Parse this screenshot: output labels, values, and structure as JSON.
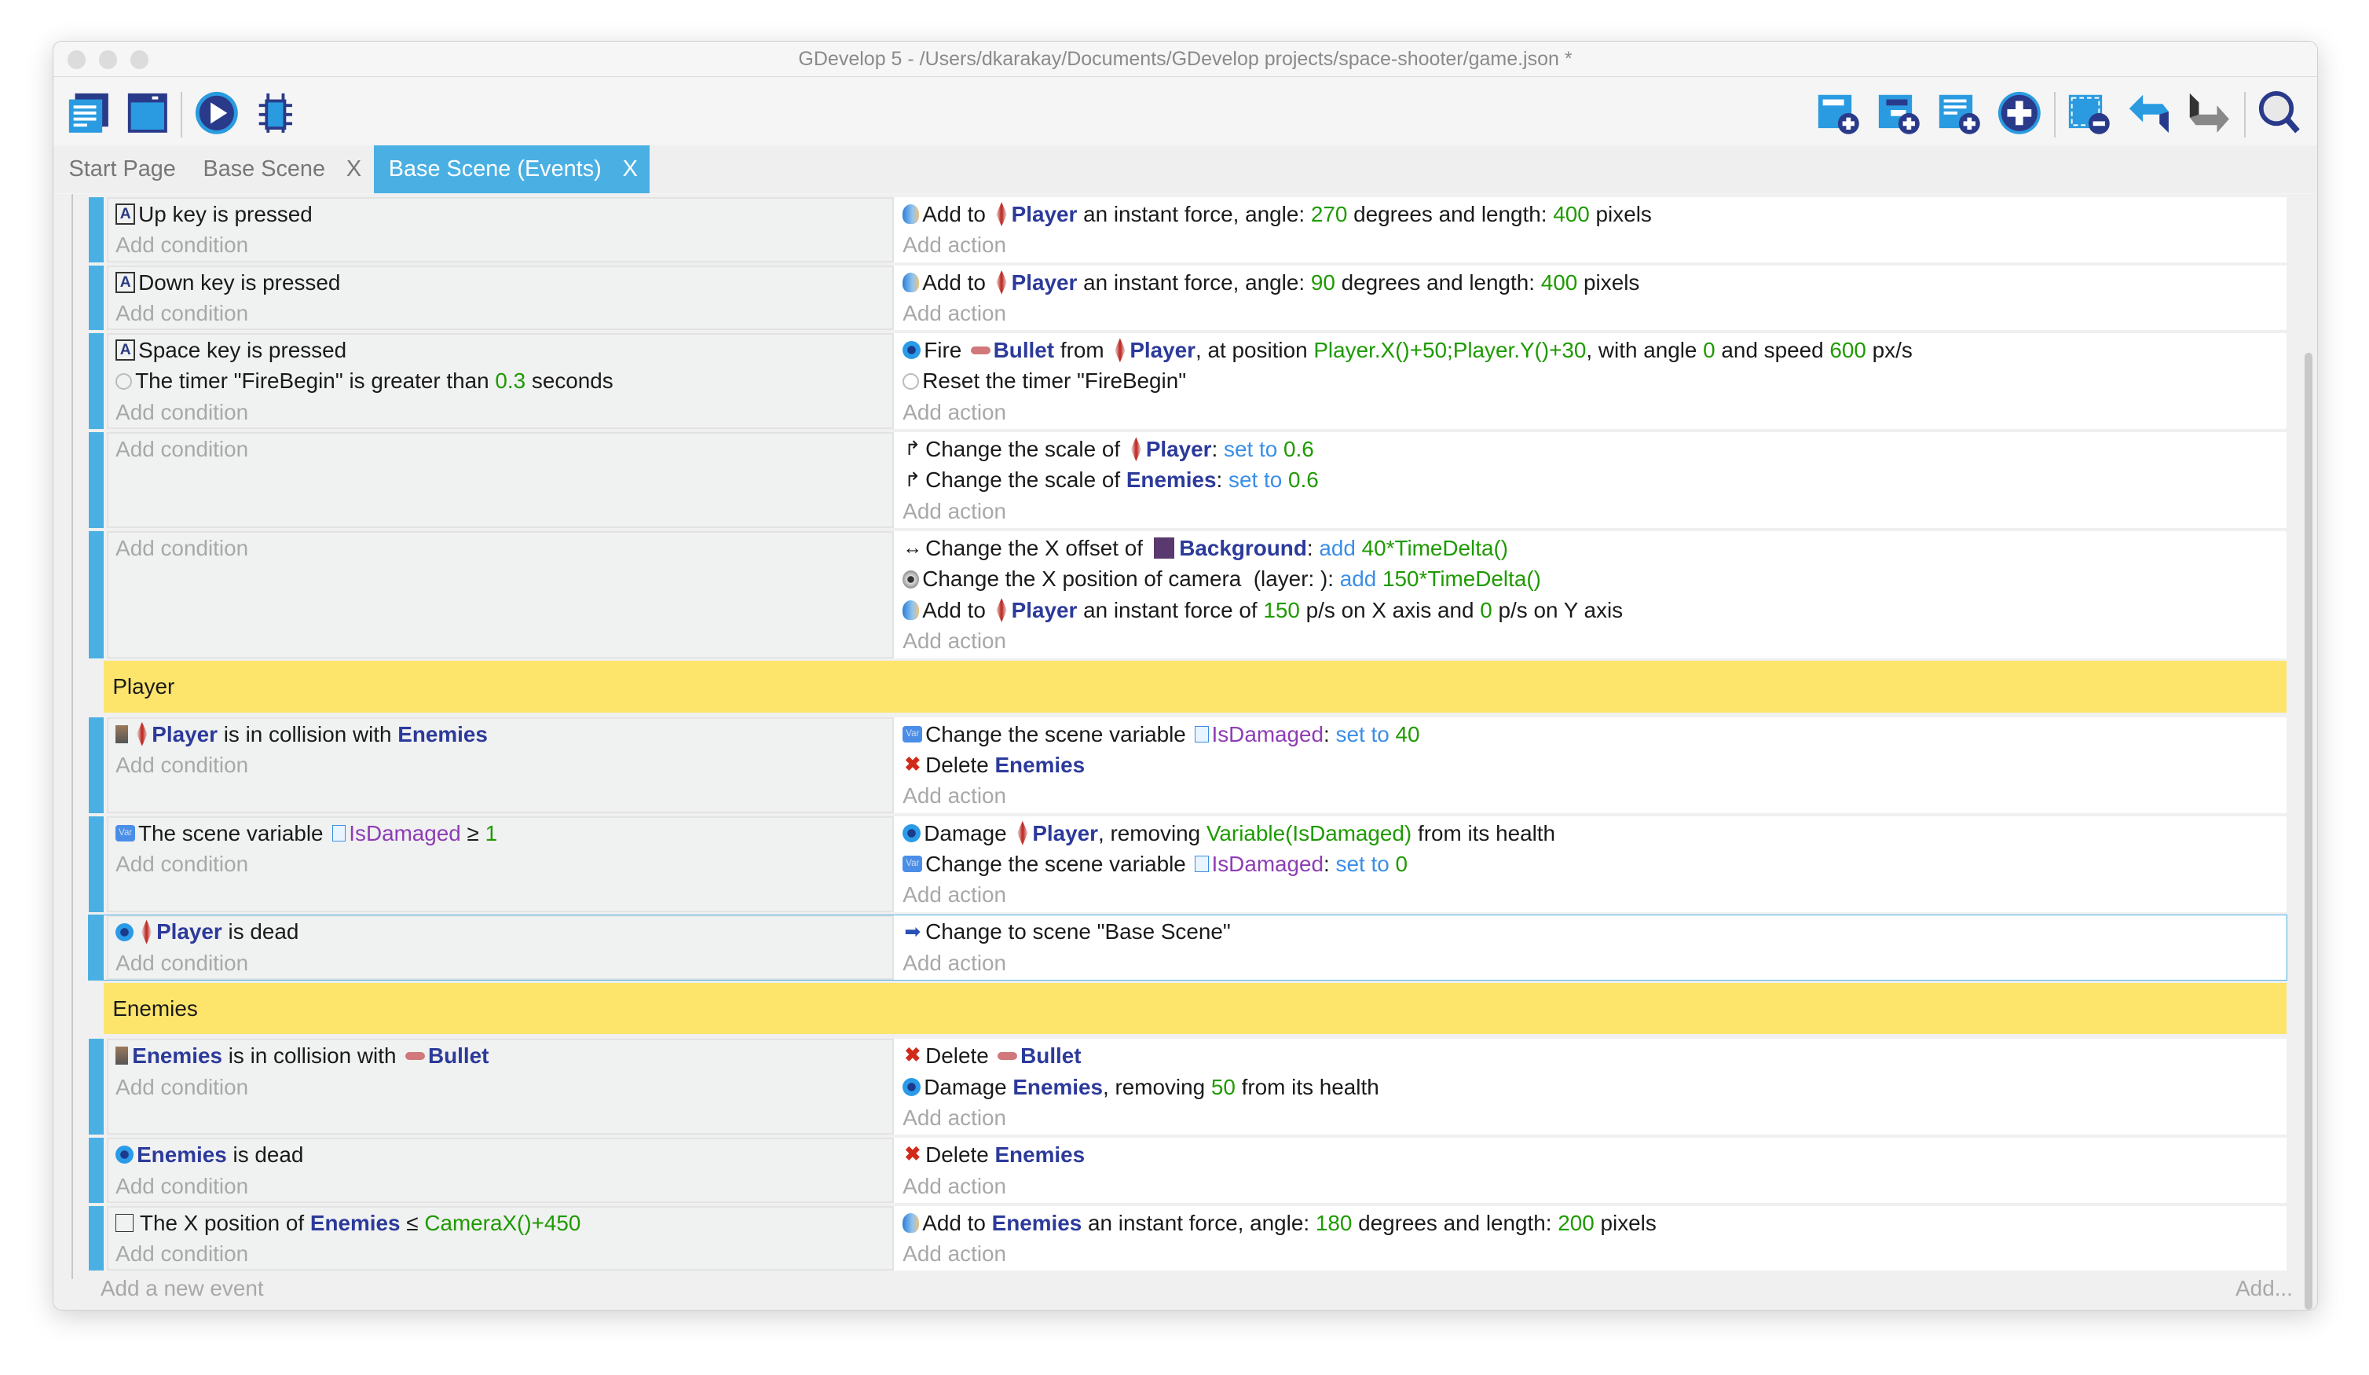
{
  "window": {
    "title": "GDevelop 5 - /Users/dkarakay/Documents/GDevelop projects/space-shooter/game.json *"
  },
  "toolbar": {
    "left": [
      "project-manager-icon",
      "scene-editor-icon",
      "preview-play-icon",
      "debugger-icon"
    ],
    "right": [
      "add-event-icon",
      "add-sub-event-icon",
      "add-comment-icon",
      "add-other-icon",
      "delete-selection-icon",
      "undo-icon",
      "redo-icon",
      "search-icon"
    ]
  },
  "tabs": [
    {
      "label": "Start Page",
      "closable": false
    },
    {
      "label": "Base Scene",
      "closable": true
    },
    {
      "label": "Base Scene (Events)",
      "closable": true,
      "active": true
    }
  ],
  "colors": {
    "accent": "#4ab0e4",
    "group": "#fde56b",
    "object": "#2c3a9a",
    "value": "#1e9a00",
    "operator": "#3a8ee6",
    "variable": "#8e3cb5"
  },
  "labels": {
    "add_condition": "Add condition",
    "add_action": "Add action",
    "add_event": "Add a new event",
    "add_more": "Add...",
    "close": "X"
  },
  "events": [
    {
      "type": "event",
      "conditions": [
        [
          {
            "i": "keyboard"
          },
          {
            "t": "Up key is pressed"
          }
        ]
      ],
      "actions": [
        [
          {
            "i": "force"
          },
          {
            "t": "Add to "
          },
          {
            "i": "player"
          },
          {
            "t": "Player",
            "s": "obj"
          },
          {
            "t": " an instant force, angle: "
          },
          {
            "t": "270",
            "s": "num"
          },
          {
            "t": " degrees and length: "
          },
          {
            "t": "400",
            "s": "num"
          },
          {
            "t": " pixels"
          }
        ]
      ]
    },
    {
      "type": "event",
      "conditions": [
        [
          {
            "i": "keyboard"
          },
          {
            "t": "Down key is pressed"
          }
        ]
      ],
      "actions": [
        [
          {
            "i": "force"
          },
          {
            "t": "Add to "
          },
          {
            "i": "player"
          },
          {
            "t": "Player",
            "s": "obj"
          },
          {
            "t": " an instant force, angle: "
          },
          {
            "t": "90",
            "s": "num"
          },
          {
            "t": " degrees and length: "
          },
          {
            "t": "400",
            "s": "num"
          },
          {
            "t": " pixels"
          }
        ]
      ]
    },
    {
      "type": "event",
      "conditions": [
        [
          {
            "i": "keyboard"
          },
          {
            "t": "Space key is pressed"
          }
        ],
        [
          {
            "i": "timer"
          },
          {
            "t": "The timer \"FireBegin\" is greater than "
          },
          {
            "t": "0.3",
            "s": "num"
          },
          {
            "t": " seconds"
          }
        ]
      ],
      "actions": [
        [
          {
            "i": "gear"
          },
          {
            "t": "Fire "
          },
          {
            "i": "bullet"
          },
          {
            "t": "Bullet",
            "s": "obj"
          },
          {
            "t": " from "
          },
          {
            "i": "player"
          },
          {
            "t": "Player",
            "s": "obj"
          },
          {
            "t": ", at position "
          },
          {
            "t": "Player.X()+50;Player.Y()+30",
            "s": "num"
          },
          {
            "t": ", with angle "
          },
          {
            "t": "0",
            "s": "num"
          },
          {
            "t": " and speed "
          },
          {
            "t": "600",
            "s": "num"
          },
          {
            "t": " px/s"
          }
        ],
        [
          {
            "i": "timer"
          },
          {
            "t": "Reset the timer \"FireBegin\""
          }
        ]
      ]
    },
    {
      "type": "event",
      "conditions": [],
      "actions": [
        [
          {
            "i": "scale"
          },
          {
            "t": "Change the scale of "
          },
          {
            "i": "player"
          },
          {
            "t": "Player",
            "s": "obj"
          },
          {
            "t": ": "
          },
          {
            "t": "set to",
            "s": "op"
          },
          {
            "t": " 0.6",
            "s": "num"
          }
        ],
        [
          {
            "i": "scale"
          },
          {
            "t": "Change the scale of "
          },
          {
            "t": "Enemies",
            "s": "obj"
          },
          {
            "t": ": "
          },
          {
            "t": "set to",
            "s": "op"
          },
          {
            "t": " 0.6",
            "s": "num"
          }
        ]
      ]
    },
    {
      "type": "event",
      "conditions": [],
      "actions": [
        [
          {
            "i": "offset"
          },
          {
            "t": "Change the X offset of "
          },
          {
            "i": "bg"
          },
          {
            "t": "Background",
            "s": "obj"
          },
          {
            "t": ": "
          },
          {
            "t": "add",
            "s": "op"
          },
          {
            "t": " 40*TimeDelta()",
            "s": "num"
          }
        ],
        [
          {
            "i": "camera"
          },
          {
            "t": "Change the X position of camera  (layer: ): "
          },
          {
            "t": "add",
            "s": "op"
          },
          {
            "t": " 150*TimeDelta()",
            "s": "num"
          }
        ],
        [
          {
            "i": "force"
          },
          {
            "t": "Add to "
          },
          {
            "i": "player"
          },
          {
            "t": "Player",
            "s": "obj"
          },
          {
            "t": " an instant force of "
          },
          {
            "t": "150",
            "s": "num"
          },
          {
            "t": " p/s on X axis and "
          },
          {
            "t": "0",
            "s": "num"
          },
          {
            "t": " p/s on Y axis"
          }
        ]
      ]
    },
    {
      "type": "group",
      "title": "Player"
    },
    {
      "type": "event",
      "conditions": [
        [
          {
            "i": "collision"
          },
          {
            "i": "player"
          },
          {
            "t": "Player",
            "s": "obj"
          },
          {
            "t": " is in collision with "
          },
          {
            "t": "Enemies",
            "s": "obj"
          }
        ]
      ],
      "actions": [
        [
          {
            "i": "variable"
          },
          {
            "t": "Change the scene variable "
          },
          {
            "i": "varref"
          },
          {
            "t": "IsDamaged",
            "s": "var"
          },
          {
            "t": ": "
          },
          {
            "t": "set to",
            "s": "op"
          },
          {
            "t": " 40",
            "s": "num"
          }
        ],
        [
          {
            "i": "delete"
          },
          {
            "t": "Delete "
          },
          {
            "t": "Enemies",
            "s": "obj"
          }
        ]
      ]
    },
    {
      "type": "event",
      "conditions": [
        [
          {
            "i": "variable"
          },
          {
            "t": "The scene variable "
          },
          {
            "i": "varref"
          },
          {
            "t": "IsDamaged",
            "s": "var"
          },
          {
            "t": " ≥ "
          },
          {
            "t": "1",
            "s": "num"
          }
        ]
      ],
      "actions": [
        [
          {
            "i": "gear"
          },
          {
            "t": "Damage "
          },
          {
            "i": "player"
          },
          {
            "t": "Player",
            "s": "obj"
          },
          {
            "t": ", removing "
          },
          {
            "t": "Variable(IsDamaged)",
            "s": "num"
          },
          {
            "t": " from its health"
          }
        ],
        [
          {
            "i": "variable"
          },
          {
            "t": "Change the scene variable "
          },
          {
            "i": "varref"
          },
          {
            "t": "IsDamaged",
            "s": "var"
          },
          {
            "t": ": "
          },
          {
            "t": "set to",
            "s": "op"
          },
          {
            "t": " 0",
            "s": "num"
          }
        ]
      ]
    },
    {
      "type": "event",
      "selected": true,
      "conditions": [
        [
          {
            "i": "gear"
          },
          {
            "i": "player"
          },
          {
            "t": "Player",
            "s": "obj"
          },
          {
            "t": " is dead"
          }
        ]
      ],
      "actions": [
        [
          {
            "i": "scene"
          },
          {
            "t": "Change to scene \"Base Scene\""
          }
        ]
      ]
    },
    {
      "type": "group",
      "title": "Enemies"
    },
    {
      "type": "event",
      "conditions": [
        [
          {
            "i": "collision"
          },
          {
            "t": "Enemies",
            "s": "obj"
          },
          {
            "t": " is in collision with "
          },
          {
            "i": "bullet"
          },
          {
            "t": "Bullet",
            "s": "obj"
          }
        ]
      ],
      "actions": [
        [
          {
            "i": "delete"
          },
          {
            "t": "Delete "
          },
          {
            "i": "bullet"
          },
          {
            "t": "Bullet",
            "s": "obj"
          }
        ],
        [
          {
            "i": "gear"
          },
          {
            "t": "Damage "
          },
          {
            "t": "Enemies",
            "s": "obj"
          },
          {
            "t": ", removing "
          },
          {
            "t": "50",
            "s": "num"
          },
          {
            "t": " from its health"
          }
        ]
      ]
    },
    {
      "type": "event",
      "conditions": [
        [
          {
            "i": "gear"
          },
          {
            "t": "Enemies",
            "s": "obj"
          },
          {
            "t": " is dead"
          }
        ]
      ],
      "actions": [
        [
          {
            "i": "delete"
          },
          {
            "t": "Delete "
          },
          {
            "t": "Enemies",
            "s": "obj"
          }
        ]
      ]
    },
    {
      "type": "event",
      "conditions": [
        [
          {
            "i": "checkbox"
          },
          {
            "t": "The X position of "
          },
          {
            "t": "Enemies",
            "s": "obj"
          },
          {
            "t": " ≤ "
          },
          {
            "t": "CameraX()+450",
            "s": "num"
          }
        ]
      ],
      "actions": [
        [
          {
            "i": "force"
          },
          {
            "t": "Add to "
          },
          {
            "t": "Enemies",
            "s": "obj"
          },
          {
            "t": " an instant force, angle: "
          },
          {
            "t": "180",
            "s": "num"
          },
          {
            "t": " degrees and length: "
          },
          {
            "t": "200",
            "s": "num"
          },
          {
            "t": " pixels"
          }
        ]
      ]
    }
  ]
}
